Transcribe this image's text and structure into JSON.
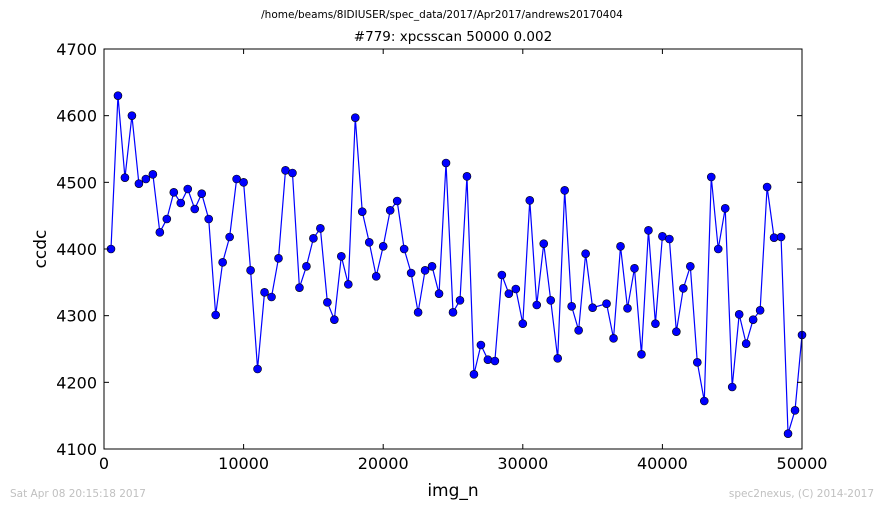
{
  "suptitle": "/home/beams/8IDIUSER/spec_data/2017/Apr2017/andrews20170404",
  "footer": {
    "timestamp": "Sat Apr 08 20:15:18 2017",
    "credit": "spec2nexus, (C) 2014-2017"
  },
  "chart_data": {
    "type": "line",
    "title": "#779: xpcsscan 50000 0.002",
    "xlabel": "img_n",
    "ylabel": "ccdc",
    "xlim": [
      0,
      50000
    ],
    "ylim": [
      4100,
      4700
    ],
    "xticks": [
      0,
      10000,
      20000,
      30000,
      40000,
      50000
    ],
    "yticks": [
      4100,
      4200,
      4300,
      4400,
      4500,
      4600,
      4700
    ],
    "grid": false,
    "color": "#0000ff",
    "marker": "circle",
    "series": [
      {
        "x": [
          500,
          1000,
          1500,
          2000,
          2500,
          3000,
          3500,
          4000,
          4500,
          5000,
          5500,
          6000,
          6500,
          7000,
          7500,
          8000,
          8500,
          9000,
          9500,
          10000,
          10500,
          11000,
          11500,
          12000,
          12500,
          13000,
          13500,
          14000,
          14500,
          15000,
          15500,
          16000,
          16500,
          17000,
          17500,
          18000,
          18500,
          19000,
          19500,
          20000,
          20500,
          21000,
          21500,
          22000,
          22500,
          23000,
          23500,
          24000,
          24500,
          25000,
          25500,
          26000,
          26500,
          27000,
          27500,
          28000,
          28500,
          29000,
          29500,
          30000,
          30500,
          31000,
          31500,
          32000,
          32500,
          33000,
          33500,
          34000,
          34500,
          35000,
          36000,
          36500,
          37000,
          37500,
          38000,
          38500,
          39000,
          39500,
          40000,
          40500,
          41000,
          41500,
          42000,
          42500,
          43000,
          43500,
          44000,
          44500,
          45000,
          45500,
          46000,
          46500,
          47000,
          47500,
          48000,
          48500,
          49000,
          49500,
          50000
        ],
        "y": [
          4400,
          4630,
          4507,
          4600,
          4498,
          4505,
          4512,
          4425,
          4445,
          4485,
          4469,
          4490,
          4460,
          4483,
          4445,
          4301,
          4380,
          4418,
          4505,
          4500,
          4368,
          4220,
          4335,
          4328,
          4386,
          4518,
          4514,
          4342,
          4374,
          4416,
          4431,
          4320,
          4294,
          4389,
          4347,
          4597,
          4456,
          4410,
          4359,
          4404,
          4458,
          4472,
          4400,
          4364,
          4305,
          4368,
          4374,
          4333,
          4529,
          4305,
          4323,
          4509,
          4212,
          4256,
          4234,
          4232,
          4361,
          4333,
          4340,
          4288,
          4473,
          4316,
          4408,
          4323,
          4236,
          4488,
          4314,
          4278,
          4393,
          4312,
          4318,
          4266,
          4404,
          4311,
          4371,
          4242,
          4428,
          4288,
          4419,
          4415,
          4276,
          4341,
          4374,
          4230,
          4172,
          4508,
          4400,
          4461,
          4193,
          4302,
          4258,
          4294,
          4308,
          4493,
          4417,
          4418,
          4123,
          4158,
          4271
        ]
      }
    ]
  }
}
